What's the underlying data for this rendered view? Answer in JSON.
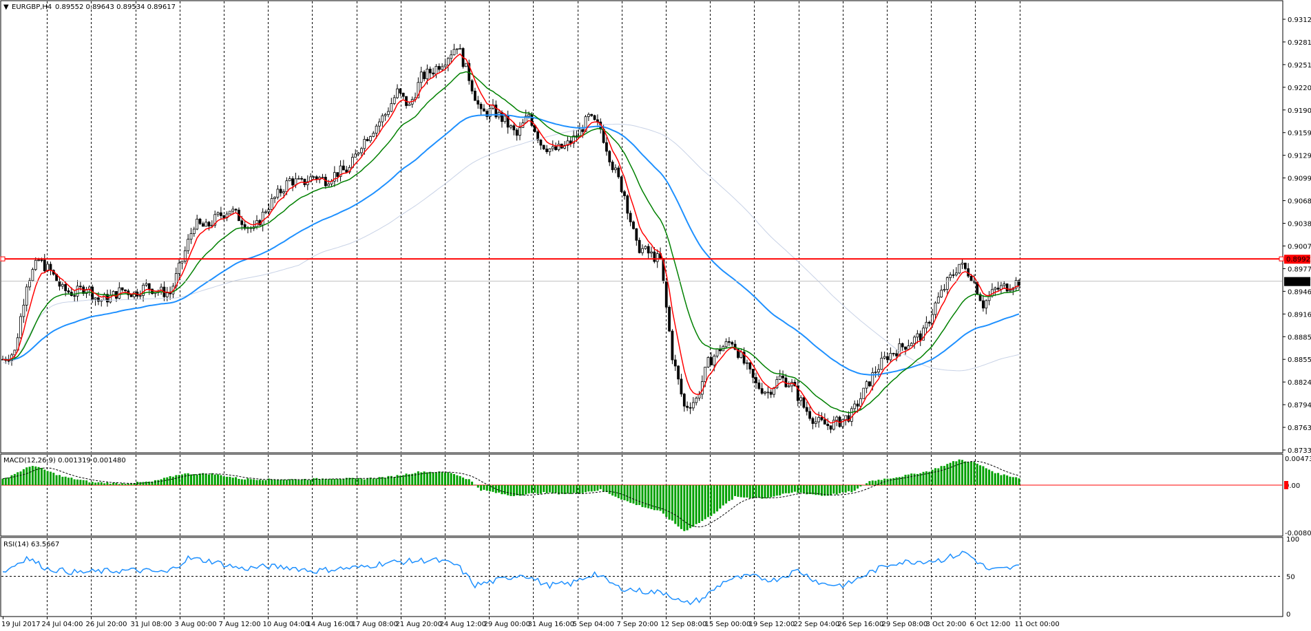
{
  "header": {
    "symbol": "EURGBP,H4",
    "ohlc": "0.89552 0.89643 0.89534 0.89617"
  },
  "colors": {
    "background": "#ffffff",
    "grid": "#000000",
    "candle": "#000000",
    "ma_fast": "#ff0000",
    "ma_mid": "#008000",
    "ma_slow": "#1e90ff",
    "ma_slow2": "#c8d2e6",
    "level_line": "#ff0000",
    "price_line": "#c0c0c0",
    "macd_hist": "#00a000",
    "macd_signal": "#000000",
    "rsi": "#1e90ff"
  },
  "price_axis": {
    "labels": [
      "0.93120",
      "0.92815",
      "0.92510",
      "0.92205",
      "0.91900",
      "0.91595",
      "0.91290",
      "0.90990",
      "0.90685",
      "0.90380",
      "0.90075",
      "0.89770",
      "0.89465",
      "0.89160",
      "0.88855",
      "0.88550",
      "0.88245",
      "0.87940",
      "0.87635",
      "0.87330"
    ],
    "level_tag": "0.89922",
    "current_tag": "0.89617"
  },
  "macd": {
    "label": "MACD(12,26,9) 0.001319 0.001480",
    "axis_labels": [
      "0.004734",
      "0.00",
      "-0.008033"
    ]
  },
  "rsi": {
    "label": "RSI(14) 63.5667",
    "axis_labels": [
      "100",
      "50",
      "0"
    ]
  },
  "time_axis": {
    "labels": [
      "19 Jul 2017",
      "24 Jul 04:00",
      "26 Jul 20:00",
      "31 Jul 08:00",
      "3 Aug 00:00",
      "7 Aug 12:00",
      "10 Aug 04:00",
      "14 Aug 16:00",
      "17 Aug 08:00",
      "21 Aug 20:00",
      "24 Aug 12:00",
      "29 Aug 00:00",
      "31 Aug 16:00",
      "5 Sep 04:00",
      "7 Sep 20:00",
      "12 Sep 08:00",
      "15 Sep 00:00",
      "19 Sep 12:00",
      "22 Sep 04:00",
      "26 Sep 16:00",
      "29 Sep 08:00",
      "3 Oct 20:00",
      "6 Oct 12:00",
      "11 Oct 00:00"
    ]
  },
  "chart_data": {
    "type": "candlestick",
    "symbol": "EURGBP",
    "timeframe": "H4",
    "ylim": [
      0.8733,
      0.9327
    ],
    "level_line": 0.89922,
    "last_price": 0.89617,
    "close_path": [
      [
        0,
        0.8855
      ],
      [
        4,
        0.8865
      ],
      [
        8,
        0.896
      ],
      [
        12,
        0.899
      ],
      [
        16,
        0.8975
      ],
      [
        20,
        0.895
      ],
      [
        24,
        0.8945
      ],
      [
        28,
        0.8955
      ],
      [
        32,
        0.8935
      ],
      [
        36,
        0.894
      ],
      [
        40,
        0.895
      ],
      [
        44,
        0.8945
      ],
      [
        48,
        0.8955
      ],
      [
        52,
        0.8948
      ],
      [
        56,
        0.8945
      ],
      [
        60,
        0.899
      ],
      [
        64,
        0.904
      ],
      [
        68,
        0.9035
      ],
      [
        72,
        0.905
      ],
      [
        76,
        0.906
      ],
      [
        80,
        0.9045
      ],
      [
        84,
        0.903
      ],
      [
        88,
        0.906
      ],
      [
        92,
        0.908
      ],
      [
        96,
        0.91
      ],
      [
        100,
        0.9095
      ],
      [
        104,
        0.9105
      ],
      [
        108,
        0.91
      ],
      [
        112,
        0.911
      ],
      [
        116,
        0.9115
      ],
      [
        120,
        0.915
      ],
      [
        124,
        0.917
      ],
      [
        128,
        0.919
      ],
      [
        132,
        0.922
      ],
      [
        136,
        0.92
      ],
      [
        140,
        0.924
      ],
      [
        144,
        0.925
      ],
      [
        148,
        0.9265
      ],
      [
        152,
        0.9285
      ],
      [
        156,
        0.924
      ],
      [
        160,
        0.919
      ],
      [
        164,
        0.9195
      ],
      [
        168,
        0.918
      ],
      [
        172,
        0.916
      ],
      [
        176,
        0.919
      ],
      [
        180,
        0.915
      ],
      [
        184,
        0.914
      ],
      [
        188,
        0.9145
      ],
      [
        192,
        0.916
      ],
      [
        196,
        0.9185
      ],
      [
        200,
        0.917
      ],
      [
        204,
        0.912
      ],
      [
        208,
        0.908
      ],
      [
        212,
        0.901
      ],
      [
        216,
        0.9
      ],
      [
        220,
        0.899
      ],
      [
        224,
        0.886
      ],
      [
        228,
        0.879
      ],
      [
        232,
        0.88
      ],
      [
        236,
        0.885
      ],
      [
        240,
        0.887
      ],
      [
        244,
        0.888
      ],
      [
        248,
        0.885
      ],
      [
        252,
        0.882
      ],
      [
        256,
        0.881
      ],
      [
        260,
        0.883
      ],
      [
        264,
        0.882
      ],
      [
        268,
        0.879
      ],
      [
        272,
        0.877
      ],
      [
        276,
        0.8765
      ],
      [
        280,
        0.877
      ],
      [
        284,
        0.878
      ],
      [
        288,
        0.881
      ],
      [
        292,
        0.884
      ],
      [
        296,
        0.886
      ],
      [
        300,
        0.887
      ],
      [
        304,
        0.888
      ],
      [
        308,
        0.889
      ],
      [
        312,
        0.893
      ],
      [
        316,
        0.896
      ],
      [
        320,
        0.8985
      ],
      [
        324,
        0.897
      ],
      [
        328,
        0.893
      ],
      [
        332,
        0.895
      ],
      [
        336,
        0.8955
      ],
      [
        340,
        0.8962
      ]
    ],
    "macd_path": [
      [
        0,
        0.001
      ],
      [
        10,
        0.0035
      ],
      [
        20,
        0.0015
      ],
      [
        30,
        0.0005
      ],
      [
        40,
        0.0003
      ],
      [
        50,
        0.0006
      ],
      [
        60,
        0.002
      ],
      [
        70,
        0.002
      ],
      [
        80,
        0.0011
      ],
      [
        90,
        0.001
      ],
      [
        100,
        0.001
      ],
      [
        110,
        0.0012
      ],
      [
        120,
        0.0011
      ],
      [
        130,
        0.0015
      ],
      [
        140,
        0.0024
      ],
      [
        150,
        0.0022
      ],
      [
        156,
        0.001
      ],
      [
        160,
        -0.0008
      ],
      [
        170,
        -0.0018
      ],
      [
        180,
        -0.0013
      ],
      [
        190,
        -0.0015
      ],
      [
        200,
        -0.0008
      ],
      [
        210,
        -0.003
      ],
      [
        220,
        -0.0045
      ],
      [
        228,
        -0.0078
      ],
      [
        236,
        -0.0055
      ],
      [
        245,
        -0.002
      ],
      [
        255,
        -0.0022
      ],
      [
        265,
        -0.0012
      ],
      [
        275,
        -0.0018
      ],
      [
        285,
        -0.001
      ],
      [
        290,
        0.0007
      ],
      [
        300,
        0.0015
      ],
      [
        310,
        0.0025
      ],
      [
        320,
        0.0045
      ],
      [
        325,
        0.004
      ],
      [
        333,
        0.002
      ],
      [
        340,
        0.0013
      ]
    ],
    "rsi_path": [
      [
        0,
        55
      ],
      [
        8,
        75
      ],
      [
        15,
        60
      ],
      [
        25,
        55
      ],
      [
        35,
        57
      ],
      [
        45,
        58
      ],
      [
        55,
        55
      ],
      [
        62,
        74
      ],
      [
        70,
        70
      ],
      [
        80,
        60
      ],
      [
        88,
        63
      ],
      [
        96,
        62
      ],
      [
        104,
        57
      ],
      [
        112,
        60
      ],
      [
        120,
        62
      ],
      [
        128,
        68
      ],
      [
        136,
        70
      ],
      [
        144,
        72
      ],
      [
        152,
        65
      ],
      [
        158,
        38
      ],
      [
        166,
        45
      ],
      [
        174,
        53
      ],
      [
        182,
        38
      ],
      [
        190,
        40
      ],
      [
        198,
        54
      ],
      [
        206,
        35
      ],
      [
        214,
        30
      ],
      [
        222,
        28
      ],
      [
        228,
        13
      ],
      [
        234,
        20
      ],
      [
        242,
        45
      ],
      [
        250,
        50
      ],
      [
        258,
        45
      ],
      [
        266,
        58
      ],
      [
        274,
        40
      ],
      [
        282,
        38
      ],
      [
        290,
        55
      ],
      [
        298,
        68
      ],
      [
        306,
        70
      ],
      [
        314,
        72
      ],
      [
        322,
        82
      ],
      [
        326,
        70
      ],
      [
        330,
        58
      ],
      [
        336,
        60
      ],
      [
        340,
        63
      ]
    ],
    "x_ticks_bars": 14.6
  }
}
